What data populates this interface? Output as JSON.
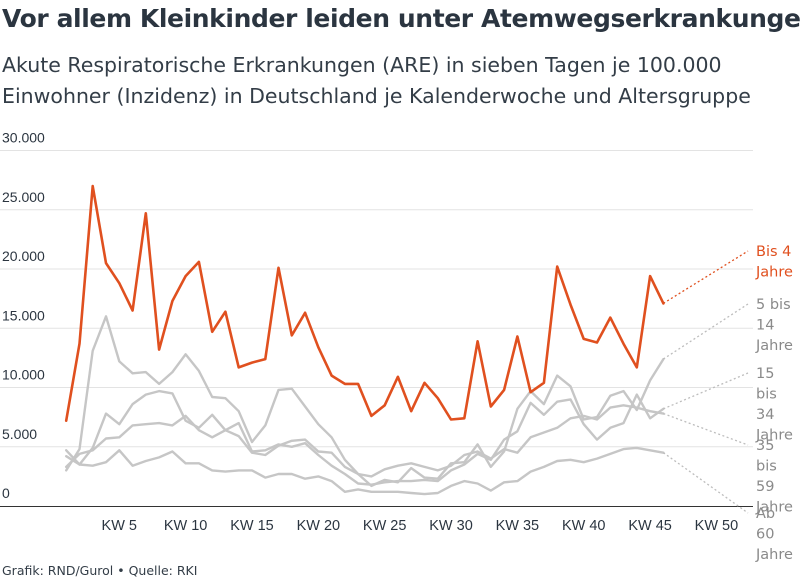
{
  "title": "Vor allem Kleinkinder leiden unter Atemwegserkrankungen",
  "subtitle": "Akute Respiratorische Erkrankungen (ARE) in sieben Tagen je 100.000 Einwohner (Inzidenz) in Deutschland je Kalenderwoche und Altersgruppe",
  "footer": "Grafik: RND/Gurol • Quelle: RKI",
  "colors": {
    "highlight": "#e0501f",
    "muted": "#c6c6c6",
    "label_muted": "#8a8a8a",
    "grid": "#e3e3e3",
    "axis": "#333333",
    "text": "#2b3540"
  },
  "chart_data": {
    "type": "line",
    "title": "Vor allem Kleinkinder leiden unter Atemwegserkrankungen",
    "subtitle": "Akute Respiratorische Erkrankungen (ARE) in sieben Tagen je 100.000 Einwohner (Inzidenz) in Deutschland je Kalenderwoche und Altersgruppe",
    "xlabel": "",
    "ylabel": "",
    "xlim": [
      0,
      52
    ],
    "ylim": [
      0,
      30000
    ],
    "grid": "horizontal",
    "legend": "direct labels at right",
    "x_ticks": [
      5,
      10,
      15,
      20,
      25,
      30,
      35,
      40,
      45,
      50
    ],
    "x_tick_labels": [
      "KW 5",
      "KW 10",
      "KW 15",
      "KW 20",
      "KW 25",
      "KW 30",
      "KW 35",
      "KW 40",
      "KW 45",
      "KW 50"
    ],
    "y_ticks": [
      0,
      5000,
      10000,
      15000,
      20000,
      25000,
      30000
    ],
    "y_tick_labels": [
      "0",
      "5.000",
      "10.000",
      "15.000",
      "20.000",
      "25.000",
      "30.000"
    ],
    "x": [
      1,
      2,
      3,
      4,
      5,
      6,
      7,
      8,
      9,
      10,
      11,
      12,
      13,
      14,
      15,
      16,
      17,
      18,
      19,
      20,
      21,
      22,
      23,
      24,
      25,
      26,
      27,
      28,
      29,
      30,
      31,
      32,
      33,
      34,
      35,
      36,
      37,
      38,
      39,
      40,
      41,
      42,
      43,
      44,
      45,
      46
    ],
    "series": [
      {
        "name": "Bis 4 Jahre",
        "highlight": true,
        "label_lines": [
          "Bis 4",
          "Jahre"
        ],
        "values": [
          7200,
          13700,
          27000,
          20500,
          18800,
          16500,
          24700,
          13200,
          17300,
          19400,
          20600,
          14700,
          16400,
          11700,
          12100,
          12400,
          20100,
          14400,
          16300,
          13400,
          11000,
          10300,
          10300,
          7600,
          8500,
          10900,
          8000,
          10400,
          9100,
          7300,
          7400,
          13900,
          8400,
          9800,
          14300,
          9600,
          10400,
          20200,
          17000,
          14100,
          13800,
          15900,
          13700,
          11700,
          19400,
          17100
        ]
      },
      {
        "name": "5 bis 14 Jahre",
        "label_lines": [
          "5 bis",
          "14",
          "Jahre"
        ],
        "values": [
          3000,
          4800,
          13100,
          16000,
          12200,
          11200,
          11300,
          10300,
          11300,
          12800,
          11400,
          9200,
          9100,
          8000,
          5400,
          6800,
          9800,
          9900,
          8400,
          6900,
          5800,
          3900,
          2700,
          1700,
          2200,
          2000,
          3200,
          2400,
          2300,
          3600,
          3700,
          5200,
          3300,
          4600,
          8200,
          9700,
          8600,
          11000,
          10100,
          7300,
          7500,
          9300,
          9700,
          8100,
          10600,
          12400
        ]
      },
      {
        "name": "15 bis 34 Jahre",
        "label_lines": [
          "15",
          "bis",
          "34",
          "Jahre"
        ],
        "values": [
          4700,
          3500,
          4900,
          7800,
          6900,
          8600,
          9400,
          9700,
          9500,
          7200,
          6600,
          7700,
          6400,
          7000,
          4600,
          4700,
          5200,
          5000,
          5300,
          4300,
          3400,
          2700,
          1900,
          1800,
          2000,
          2100,
          2100,
          2200,
          2100,
          3000,
          3500,
          4400,
          3900,
          5600,
          6300,
          8700,
          7700,
          8800,
          9000,
          6900,
          5600,
          6600,
          7000,
          9400,
          7400,
          8200
        ]
      },
      {
        "name": "35 bis 59 Jahre",
        "label_lines": [
          "35",
          "bis",
          "59",
          "Jahre"
        ],
        "values": [
          3300,
          4400,
          4700,
          5700,
          5800,
          6800,
          6900,
          7000,
          6800,
          7600,
          6400,
          5800,
          6400,
          5900,
          4500,
          4300,
          5100,
          5500,
          5600,
          4600,
          4500,
          3300,
          2700,
          2500,
          3100,
          3400,
          3600,
          3300,
          3000,
          3400,
          4300,
          4600,
          4000,
          4800,
          4500,
          5800,
          6200,
          6600,
          7400,
          7600,
          7300,
          8300,
          8500,
          8300,
          8000,
          7800
        ]
      },
      {
        "name": "Ab 60 Jahre",
        "label_lines": [
          "Ab",
          "60",
          "Jahre"
        ],
        "values": [
          4200,
          3500,
          3400,
          3700,
          4700,
          3400,
          3800,
          4100,
          4600,
          3600,
          3600,
          3000,
          2900,
          3000,
          3000,
          2400,
          2700,
          2700,
          2300,
          2500,
          2100,
          1200,
          1400,
          1200,
          1200,
          1200,
          1100,
          1000,
          1100,
          1700,
          2100,
          1900,
          1300,
          2000,
          2100,
          2900,
          3300,
          3800,
          3900,
          3700,
          4000,
          4400,
          4800,
          4900,
          4700,
          4500
        ]
      }
    ]
  }
}
